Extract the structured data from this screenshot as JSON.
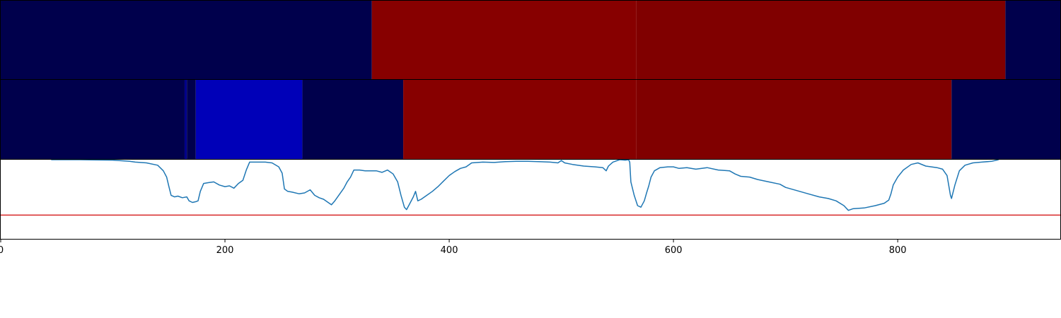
{
  "chart_data": [
    {
      "type": "heatmap",
      "xlim": [
        0,
        945
      ],
      "segments": [
        {
          "x0": 0,
          "x1": 331,
          "color": "#00004c"
        },
        {
          "x0": 331,
          "x1": 567,
          "color": "#870000"
        },
        {
          "x0": 567,
          "x1": 896,
          "color": "#800000"
        },
        {
          "x0": 896,
          "x1": 945,
          "color": "#00004c"
        }
      ]
    },
    {
      "type": "heatmap",
      "xlim": [
        0,
        945
      ],
      "segments": [
        {
          "x0": 0,
          "x1": 164,
          "color": "#00004c"
        },
        {
          "x0": 164,
          "x1": 166,
          "color": "#00008a"
        },
        {
          "x0": 166,
          "x1": 174,
          "color": "#00004c"
        },
        {
          "x0": 174,
          "x1": 269,
          "color": "#0000b8"
        },
        {
          "x0": 269,
          "x1": 359,
          "color": "#00004c"
        },
        {
          "x0": 359,
          "x1": 567,
          "color": "#870000"
        },
        {
          "x0": 567,
          "x1": 848,
          "color": "#800000"
        },
        {
          "x0": 848,
          "x1": 945,
          "color": "#00004c"
        }
      ]
    },
    {
      "type": "line",
      "xlim": [
        0,
        945
      ],
      "ylim": [
        0,
        1
      ],
      "x_ticks": [
        0,
        200,
        400,
        600,
        800
      ],
      "threshold": {
        "y": 0.3,
        "color": "#d62728"
      },
      "series": [
        {
          "color": "#1f77b4",
          "points": [
            [
              45,
              1.0
            ],
            [
              70,
              1.0
            ],
            [
              100,
              0.995
            ],
            [
              115,
              0.98
            ],
            [
              120,
              0.97
            ],
            [
              130,
              0.96
            ],
            [
              140,
              0.93
            ],
            [
              145,
              0.86
            ],
            [
              148,
              0.78
            ],
            [
              150,
              0.66
            ],
            [
              152,
              0.55
            ],
            [
              155,
              0.53
            ],
            [
              158,
              0.54
            ],
            [
              162,
              0.52
            ],
            [
              166,
              0.53
            ],
            [
              168,
              0.48
            ],
            [
              171,
              0.46
            ],
            [
              174,
              0.47
            ],
            [
              176,
              0.48
            ],
            [
              178,
              0.6
            ],
            [
              181,
              0.7
            ],
            [
              185,
              0.71
            ],
            [
              190,
              0.72
            ],
            [
              195,
              0.68
            ],
            [
              200,
              0.66
            ],
            [
              204,
              0.67
            ],
            [
              208,
              0.64
            ],
            [
              212,
              0.7
            ],
            [
              216,
              0.74
            ],
            [
              219,
              0.87
            ],
            [
              222,
              0.97
            ],
            [
              228,
              0.97
            ],
            [
              236,
              0.97
            ],
            [
              242,
              0.96
            ],
            [
              248,
              0.91
            ],
            [
              251,
              0.83
            ],
            [
              253,
              0.63
            ],
            [
              256,
              0.6
            ],
            [
              260,
              0.59
            ],
            [
              266,
              0.57
            ],
            [
              271,
              0.58
            ],
            [
              276,
              0.62
            ],
            [
              280,
              0.55
            ],
            [
              284,
              0.52
            ],
            [
              288,
              0.5
            ],
            [
              292,
              0.46
            ],
            [
              295,
              0.43
            ],
            [
              298,
              0.48
            ],
            [
              302,
              0.56
            ],
            [
              306,
              0.64
            ],
            [
              309,
              0.72
            ],
            [
              312,
              0.78
            ],
            [
              315,
              0.87
            ],
            [
              320,
              0.87
            ],
            [
              325,
              0.86
            ],
            [
              330,
              0.86
            ],
            [
              335,
              0.86
            ],
            [
              340,
              0.84
            ],
            [
              345,
              0.87
            ],
            [
              350,
              0.82
            ],
            [
              354,
              0.72
            ],
            [
              357,
              0.55
            ],
            [
              360,
              0.4
            ],
            [
              362,
              0.37
            ],
            [
              365,
              0.45
            ],
            [
              368,
              0.53
            ],
            [
              370,
              0.6
            ],
            [
              372,
              0.48
            ],
            [
              375,
              0.5
            ],
            [
              380,
              0.55
            ],
            [
              385,
              0.6
            ],
            [
              390,
              0.66
            ],
            [
              395,
              0.73
            ],
            [
              400,
              0.8
            ],
            [
              405,
              0.85
            ],
            [
              410,
              0.89
            ],
            [
              415,
              0.91
            ],
            [
              420,
              0.96
            ],
            [
              430,
              0.97
            ],
            [
              440,
              0.965
            ],
            [
              450,
              0.975
            ],
            [
              460,
              0.98
            ],
            [
              470,
              0.98
            ],
            [
              480,
              0.975
            ],
            [
              490,
              0.97
            ],
            [
              497,
              0.96
            ],
            [
              500,
              0.99
            ],
            [
              503,
              0.96
            ],
            [
              510,
              0.94
            ],
            [
              520,
              0.92
            ],
            [
              530,
              0.91
            ],
            [
              537,
              0.9
            ],
            [
              540,
              0.86
            ],
            [
              542,
              0.92
            ],
            [
              546,
              0.97
            ],
            [
              552,
              1.0
            ],
            [
              557,
              0.995
            ],
            [
              560,
              1.0
            ],
            [
              561,
              0.97
            ],
            [
              562,
              0.72
            ],
            [
              565,
              0.55
            ],
            [
              568,
              0.42
            ],
            [
              571,
              0.4
            ],
            [
              574,
              0.48
            ],
            [
              576,
              0.58
            ],
            [
              578,
              0.67
            ],
            [
              580,
              0.78
            ],
            [
              583,
              0.86
            ],
            [
              588,
              0.9
            ],
            [
              595,
              0.91
            ],
            [
              600,
              0.91
            ],
            [
              605,
              0.89
            ],
            [
              612,
              0.9
            ],
            [
              620,
              0.88
            ],
            [
              630,
              0.9
            ],
            [
              640,
              0.87
            ],
            [
              650,
              0.86
            ],
            [
              655,
              0.82
            ],
            [
              660,
              0.79
            ],
            [
              668,
              0.78
            ],
            [
              675,
              0.75
            ],
            [
              685,
              0.72
            ],
            [
              695,
              0.69
            ],
            [
              700,
              0.65
            ],
            [
              710,
              0.61
            ],
            [
              720,
              0.57
            ],
            [
              730,
              0.53
            ],
            [
              738,
              0.51
            ],
            [
              745,
              0.48
            ],
            [
              752,
              0.42
            ],
            [
              756,
              0.36
            ],
            [
              760,
              0.38
            ],
            [
              770,
              0.39
            ],
            [
              780,
              0.42
            ],
            [
              788,
              0.45
            ],
            [
              792,
              0.49
            ],
            [
              794,
              0.57
            ],
            [
              796,
              0.68
            ],
            [
              800,
              0.78
            ],
            [
              805,
              0.87
            ],
            [
              812,
              0.94
            ],
            [
              818,
              0.96
            ],
            [
              825,
              0.92
            ],
            [
              830,
              0.91
            ],
            [
              835,
              0.9
            ],
            [
              840,
              0.88
            ],
            [
              844,
              0.8
            ],
            [
              847,
              0.55
            ],
            [
              848,
              0.51
            ],
            [
              851,
              0.68
            ],
            [
              855,
              0.86
            ],
            [
              860,
              0.93
            ],
            [
              867,
              0.96
            ],
            [
              875,
              0.97
            ],
            [
              884,
              0.98
            ],
            [
              890,
              1.0
            ]
          ]
        }
      ]
    }
  ],
  "colors": {
    "line": "#1f77b4",
    "threshold": "#d62728",
    "low": "#00004c",
    "mid_low": "#0000b8",
    "high": "#870000"
  }
}
